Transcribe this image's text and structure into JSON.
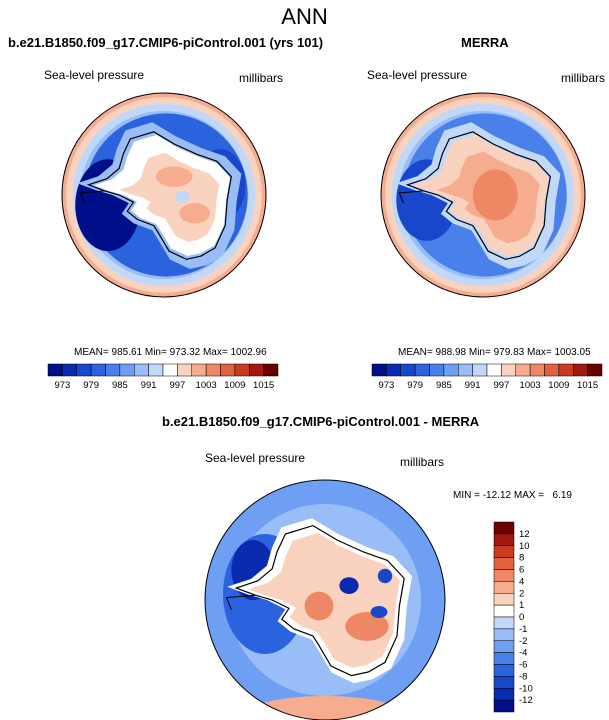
{
  "figure": {
    "title": "ANN",
    "panels": [
      {
        "title": "b.e21.B1850.f09_g17.CMIP6-piControl.001 (yrs 101)",
        "variable": "Sea-level pressure",
        "units": "millibars",
        "stats_text": "MEAN= 985.61  Min= 973.32  Max= 1002.96"
      },
      {
        "title": "MERRA",
        "variable": "Sea-level pressure",
        "units": "millibars",
        "stats_text": "MEAN= 988.98  Min= 979.83  Max= 1003.05"
      },
      {
        "title": "b.e21.B1850.f09_g17.CMIP6-piControl.001 - MERRA",
        "variable": "Sea-level pressure",
        "units": "millibars",
        "stats_text": "MIN = -12.12 MAX =   6.19"
      }
    ]
  },
  "chart_data": [
    {
      "type": "heatmap",
      "title": "b.e21.B1850.f09_g17.CMIP6-piControl.001 (yrs 101)",
      "projection": "south polar stereographic",
      "variable": "Sea-level pressure",
      "units": "millibars",
      "mean": 985.61,
      "min": 973.32,
      "max": 1002.96,
      "colorbar": {
        "levels": [
          973,
          976,
          979,
          982,
          985,
          988,
          991,
          994,
          997,
          1000,
          1003,
          1006,
          1009,
          1012,
          1015
        ],
        "tick_labels": [
          "973",
          "979",
          "985",
          "991",
          "997",
          "1003",
          "1009",
          "1015"
        ],
        "colors": [
          "#000e8a",
          "#0a2bb0",
          "#1947cc",
          "#2b63de",
          "#4a80ea",
          "#6f9ff2",
          "#99bdf6",
          "#c2d8f8",
          "#ffffff",
          "#f9d3bf",
          "#f5ac8f",
          "#ee8763",
          "#e2613f",
          "#c93a1f",
          "#a0180f",
          "#6b0000"
        ]
      }
    },
    {
      "type": "heatmap",
      "title": "MERRA",
      "projection": "south polar stereographic",
      "variable": "Sea-level pressure",
      "units": "millibars",
      "mean": 988.98,
      "min": 979.83,
      "max": 1003.05,
      "colorbar": {
        "levels": [
          973,
          976,
          979,
          982,
          985,
          988,
          991,
          994,
          997,
          1000,
          1003,
          1006,
          1009,
          1012,
          1015
        ],
        "tick_labels": [
          "973",
          "979",
          "985",
          "991",
          "997",
          "1003",
          "1009",
          "1015"
        ],
        "colors": [
          "#000e8a",
          "#0a2bb0",
          "#1947cc",
          "#2b63de",
          "#4a80ea",
          "#6f9ff2",
          "#99bdf6",
          "#c2d8f8",
          "#ffffff",
          "#f9d3bf",
          "#f5ac8f",
          "#ee8763",
          "#e2613f",
          "#c93a1f",
          "#a0180f",
          "#6b0000"
        ]
      }
    },
    {
      "type": "heatmap",
      "title": "b.e21.B1850.f09_g17.CMIP6-piControl.001 - MERRA",
      "projection": "south polar stereographic",
      "variable": "Sea-level pressure",
      "units": "millibars",
      "min": -12.12,
      "max": 6.19,
      "colorbar": {
        "orientation": "vertical",
        "levels": [
          -12,
          -10,
          -8,
          -6,
          -4,
          -2,
          -1,
          0,
          1,
          2,
          4,
          6,
          8,
          10,
          12
        ],
        "tick_labels": [
          "12",
          "10",
          "8",
          "6",
          "4",
          "2",
          "1",
          "0",
          "-1",
          "-2",
          "-4",
          "-6",
          "-8",
          "-10",
          "-12"
        ],
        "colors": [
          "#000e8a",
          "#0a2bb0",
          "#1947cc",
          "#2b63de",
          "#4a80ea",
          "#6f9ff2",
          "#99bdf6",
          "#c2d8f8",
          "#ffffff",
          "#f9d3bf",
          "#f5ac8f",
          "#ee8763",
          "#e2613f",
          "#c93a1f",
          "#a0180f",
          "#6b0000"
        ]
      }
    }
  ]
}
